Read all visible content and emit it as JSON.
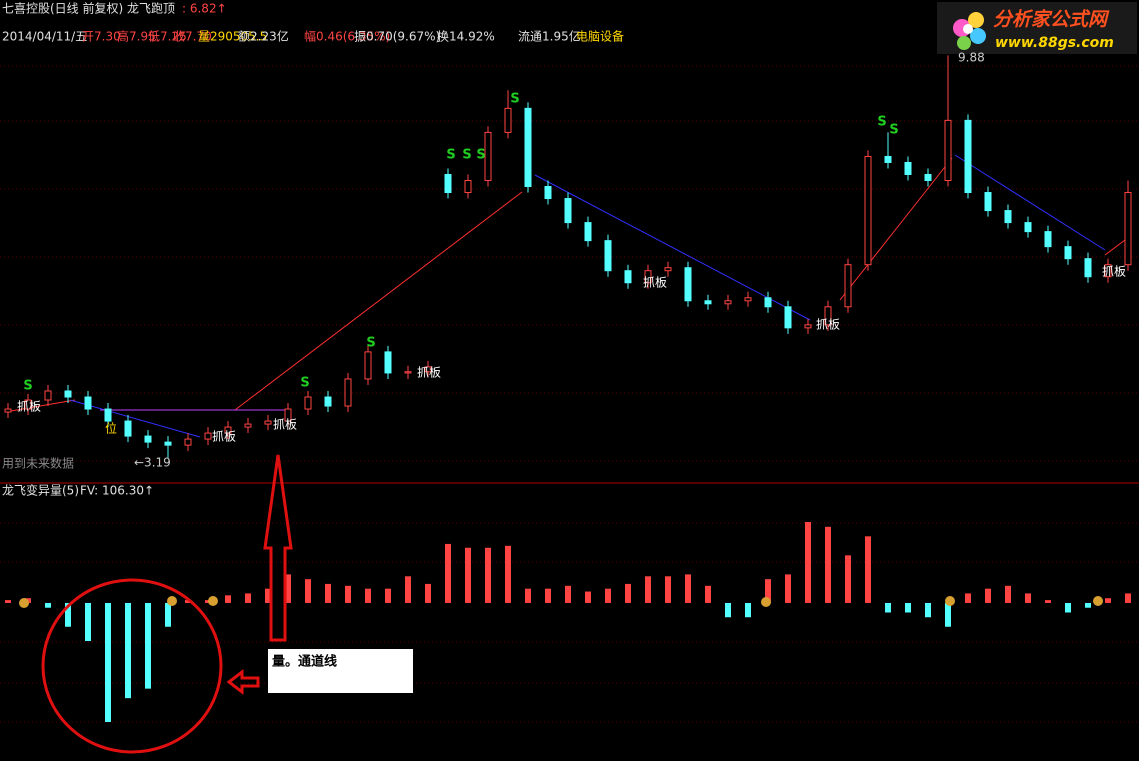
{
  "header": {
    "title": "七喜控股(日线 前复权) 龙飞跑顶",
    "value": ": 6.82↑",
    "info": [
      "2014/04/11/五",
      "开7.30",
      "高7.95",
      "低7.25",
      "收7.70",
      "量290505.5",
      "额2.23亿",
      "幅0.46(6.35%)",
      "振0.70(9.67%)",
      "换14.92%",
      "流通1.95亿",
      "电脑设备"
    ]
  },
  "logo": {
    "title": "分析家公式网",
    "url": "www.88gs.com"
  },
  "chart_data": [
    {
      "type": "candlestick",
      "up_color": "#ff4444",
      "down_color": "#54ffff",
      "ylim": [
        2.82,
        9.97
      ],
      "open": [
        3.95,
        4.0,
        4.15,
        4.3,
        4.2,
        4.0,
        3.8,
        3.55,
        3.45,
        3.4,
        3.5,
        3.6,
        3.7,
        3.75,
        3.8,
        4.0,
        4.2,
        4.05,
        4.5,
        4.95,
        4.6,
        4.62,
        7.9,
        7.6,
        7.8,
        8.6,
        9.0,
        7.7,
        7.5,
        7.1,
        6.8,
        6.3,
        6.1,
        6.3,
        6.35,
        5.8,
        5.75,
        5.8,
        5.85,
        5.7,
        5.35,
        5.4,
        5.7,
        6.4,
        8.2,
        8.1,
        7.9,
        7.8,
        8.8,
        7.6,
        7.3,
        7.1,
        6.95,
        6.7,
        6.5,
        6.2,
        6.4
      ],
      "high": [
        4.1,
        4.25,
        4.4,
        4.4,
        4.3,
        4.1,
        3.9,
        3.65,
        3.55,
        3.6,
        3.7,
        3.8,
        3.85,
        3.9,
        4.1,
        4.3,
        4.3,
        4.6,
        5.05,
        5.05,
        4.72,
        4.8,
        8.0,
        7.9,
        8.7,
        9.3,
        9.1,
        7.8,
        7.6,
        7.2,
        6.9,
        6.4,
        6.4,
        6.45,
        6.45,
        5.9,
        5.9,
        5.95,
        5.95,
        5.8,
        5.5,
        5.8,
        6.5,
        8.3,
        8.6,
        8.2,
        8.0,
        9.88,
        8.9,
        7.7,
        7.4,
        7.2,
        7.05,
        6.8,
        6.6,
        6.5,
        7.8
      ],
      "low": [
        3.85,
        3.9,
        4.05,
        4.1,
        3.9,
        3.7,
        3.45,
        3.35,
        3.19,
        3.3,
        3.4,
        3.5,
        3.6,
        3.65,
        3.7,
        3.9,
        3.95,
        3.95,
        4.4,
        4.5,
        4.5,
        4.52,
        7.5,
        7.5,
        7.7,
        8.5,
        7.6,
        7.4,
        7.0,
        6.7,
        6.2,
        6.0,
        6.0,
        6.2,
        5.7,
        5.65,
        5.65,
        5.7,
        5.6,
        5.25,
        5.25,
        5.3,
        5.6,
        6.3,
        8.0,
        7.8,
        7.7,
        7.7,
        7.5,
        7.2,
        7.0,
        6.85,
        6.6,
        6.4,
        6.1,
        6.1,
        6.3
      ],
      "close": [
        4.0,
        4.15,
        4.3,
        4.2,
        4.0,
        3.8,
        3.55,
        3.45,
        3.4,
        3.5,
        3.6,
        3.7,
        3.75,
        3.8,
        4.0,
        4.2,
        4.05,
        4.5,
        4.95,
        4.6,
        4.62,
        4.7,
        7.6,
        7.8,
        8.6,
        9.0,
        7.7,
        7.5,
        7.1,
        6.8,
        6.3,
        6.1,
        6.3,
        6.35,
        5.8,
        5.75,
        5.8,
        5.85,
        5.7,
        5.35,
        5.4,
        5.7,
        6.4,
        8.2,
        8.1,
        7.9,
        7.8,
        8.8,
        7.6,
        7.3,
        7.1,
        6.95,
        6.7,
        6.5,
        6.2,
        6.4,
        7.6
      ],
      "signals": [
        "S",
        "S",
        "S",
        "S",
        "S",
        "S",
        "S",
        "S",
        "S"
      ],
      "labels": [
        "抓板",
        "抓板",
        "抓板",
        "抓板",
        "抓板",
        "抓板",
        "抓板"
      ],
      "position_label": "位",
      "low_label": "←3.19",
      "high_label": "9.88",
      "warning": "用到未来数据"
    },
    {
      "type": "bar",
      "title": "龙飞变异量(5)",
      "value_label": "FV: 106.30↑",
      "up_color": "#ff4444",
      "down_color": "#54ffff",
      "ylim": [
        -166,
        126
      ],
      "values": [
        3,
        5,
        -5,
        -25,
        -40,
        -125,
        -100,
        -90,
        -25,
        3,
        3,
        8,
        10,
        15,
        30,
        25,
        20,
        18,
        15,
        15,
        28,
        20,
        62,
        58,
        58,
        60,
        15,
        15,
        18,
        12,
        15,
        20,
        28,
        28,
        30,
        18,
        -15,
        -15,
        25,
        30,
        85,
        80,
        50,
        70,
        -10,
        -10,
        -15,
        -25,
        10,
        15,
        18,
        10,
        3,
        -10,
        -5,
        5,
        10
      ]
    }
  ],
  "note": "量。通道线"
}
